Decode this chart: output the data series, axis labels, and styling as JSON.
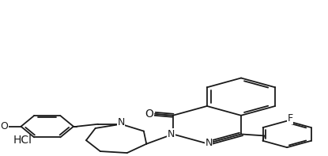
{
  "background_color": "#ffffff",
  "figsize": [
    4.15,
    1.97
  ],
  "dpi": 100,
  "line_color": "#1a1a1a",
  "line_width": 1.3,
  "hcl_text": "HCl",
  "hcl_fontsize": 10,
  "label_fontsize": 9,
  "atom_labels": {
    "O": "O",
    "N1": "N",
    "N2": "N",
    "F": "F",
    "OCH3_O": "O",
    "N_az": "N"
  }
}
